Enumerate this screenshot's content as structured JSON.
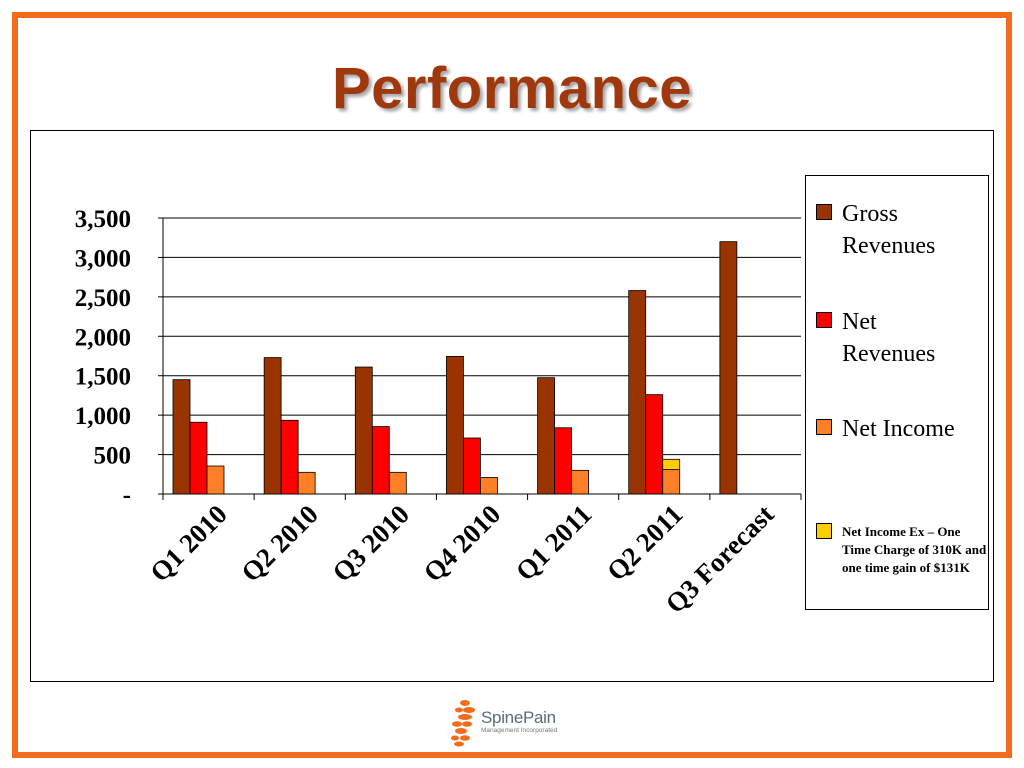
{
  "slide": {
    "title": "Performance",
    "frame_color": "#f26d1b",
    "title_color": "#a0380e"
  },
  "logo": {
    "name": "SpinePain",
    "subtitle": "Management Incorporated",
    "icon": "spine-discs-icon",
    "color": "#f26d1b"
  },
  "chart_data": {
    "type": "bar",
    "title": "",
    "xlabel": "",
    "ylabel": "",
    "ylim": [
      0,
      3500
    ],
    "yticks": [
      {
        "value": 0,
        "label": "-"
      },
      {
        "value": 500,
        "label": "500"
      },
      {
        "value": 1000,
        "label": "1,000"
      },
      {
        "value": 1500,
        "label": "1,500"
      },
      {
        "value": 2000,
        "label": "2,000"
      },
      {
        "value": 2500,
        "label": "2,500"
      },
      {
        "value": 3000,
        "label": "3,000"
      },
      {
        "value": 3500,
        "label": "3,500"
      }
    ],
    "grid": true,
    "legend_position": "right",
    "categories": [
      "Q1 2010",
      "Q2 2010",
      "Q3 2010",
      "Q4 2010",
      "Q1 2011",
      "Q2 2011",
      "Q3 Forecast"
    ],
    "series": [
      {
        "name": "Gross Revenues",
        "color": "#993300",
        "values": [
          1450,
          1730,
          1610,
          1745,
          1475,
          2580,
          3200
        ]
      },
      {
        "name": "Net Revenues",
        "color": "#ff0000",
        "values": [
          910,
          935,
          855,
          710,
          840,
          1260,
          null
        ]
      },
      {
        "name": "Net Income",
        "color": "#ff7f27",
        "values": [
          355,
          275,
          275,
          210,
          300,
          310,
          null
        ]
      },
      {
        "name": "Net Income Ex – One Time Charge of 310K and one time gain of $131K",
        "color": "#ffcc00",
        "stacked_on": "Net Income",
        "values": [
          null,
          null,
          null,
          null,
          null,
          130,
          null
        ]
      }
    ]
  },
  "legend": {
    "items": [
      {
        "label": "Gross Revenues",
        "color": "#993300"
      },
      {
        "label": "Net Revenues",
        "color": "#ff0000"
      },
      {
        "label": "Net Income",
        "color": "#ff7f27"
      },
      {
        "label": "Net Income Ex – One Time Charge of 310K and one time gain of $131K",
        "color": "#ffcc00"
      }
    ]
  }
}
